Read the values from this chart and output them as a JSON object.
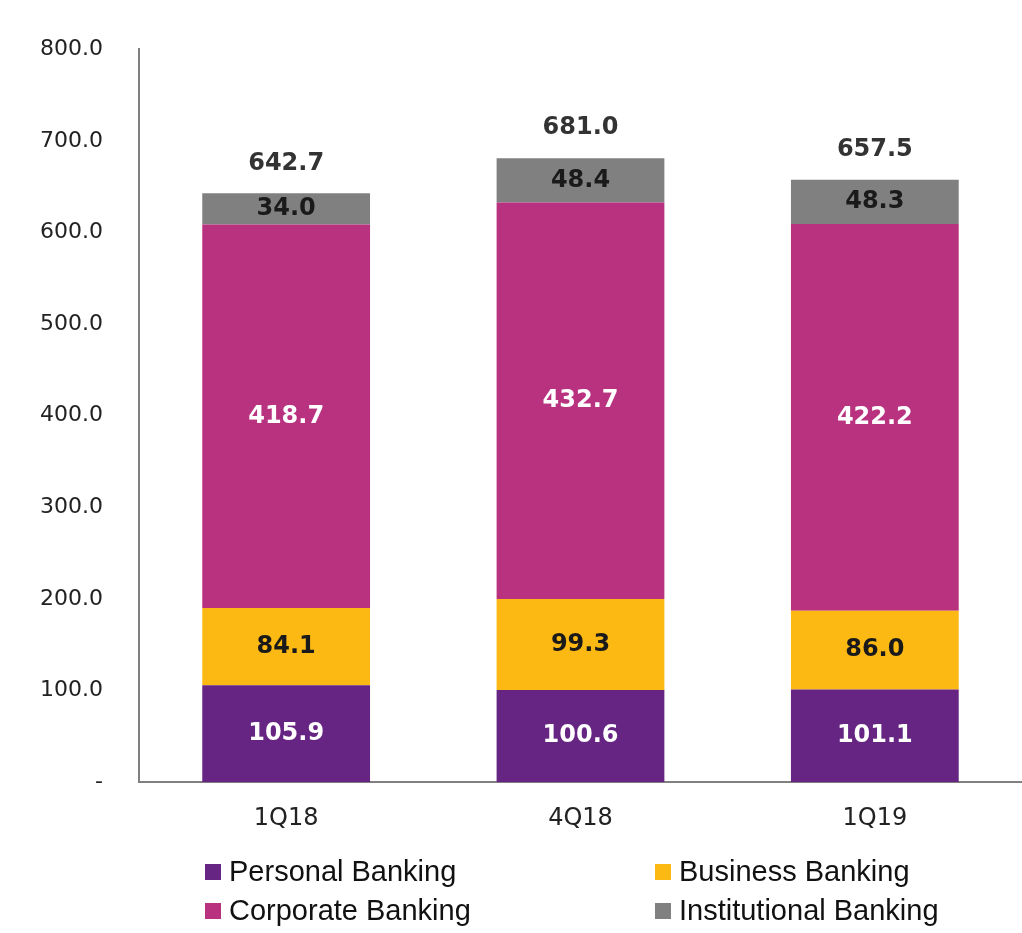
{
  "chart_data": {
    "type": "bar",
    "stacked": true,
    "categories": [
      "1Q18",
      "4Q18",
      "1Q19"
    ],
    "series": [
      {
        "name": "Personal Banking",
        "color": "#662483",
        "values": [
          105.9,
          100.6,
          101.1
        ],
        "value_labels": [
          "105.9",
          "100.6",
          "101.1"
        ]
      },
      {
        "name": "Business Banking",
        "color": "#fdb913",
        "values": [
          84.1,
          99.3,
          86.0
        ],
        "value_labels": [
          "84.1",
          "99.3",
          "86.0"
        ]
      },
      {
        "name": "Corporate Banking",
        "color": "#b83280",
        "values": [
          418.7,
          432.7,
          422.2
        ],
        "value_labels": [
          "418.7",
          "432.7",
          "422.2"
        ]
      },
      {
        "name": "Institutional Banking",
        "color": "#808080",
        "values": [
          34.0,
          48.4,
          48.3
        ],
        "value_labels": [
          "34.0",
          "48.4",
          "48.3"
        ]
      }
    ],
    "totals": [
      "642.7",
      "681.0",
      "657.5"
    ],
    "ylim": [
      0,
      800
    ],
    "yticks": [
      {
        "value": 0,
        "label": "-"
      },
      {
        "value": 100,
        "label": "100.0"
      },
      {
        "value": 200,
        "label": "200.0"
      },
      {
        "value": 300,
        "label": "300.0"
      },
      {
        "value": 400,
        "label": "400.0"
      },
      {
        "value": 500,
        "label": "500.0"
      },
      {
        "value": 600,
        "label": "600.0"
      },
      {
        "value": 700,
        "label": "700.0"
      },
      {
        "value": 800,
        "label": "800.0"
      }
    ],
    "grid": false,
    "legend": "bottom"
  }
}
